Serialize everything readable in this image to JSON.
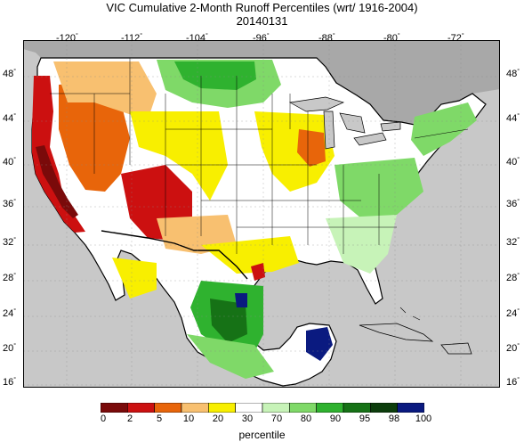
{
  "title": {
    "line1": "VIC Cumulative 2-Month Runoff Percentiles (wrt/ 1916-2004)",
    "line2": "20140131"
  },
  "lon_ticks": [
    "-120",
    "-112",
    "-104",
    "-96",
    "-88",
    "-80",
    "-72"
  ],
  "lat_ticks": [
    "48",
    "44",
    "40",
    "36",
    "32",
    "28",
    "24",
    "20",
    "16"
  ],
  "legend": {
    "title": "percentile",
    "labels": [
      "0",
      "2",
      "5",
      "10",
      "20",
      "30",
      "70",
      "80",
      "90",
      "95",
      "98",
      "100"
    ],
    "colors": [
      "#7a0a0a",
      "#cc1010",
      "#e8650a",
      "#f8c070",
      "#f8ef00",
      "#ffffff",
      "#c7f3b8",
      "#7fd968",
      "#2fb22f",
      "#167216",
      "#0c3d0c",
      "#0a1a80"
    ]
  },
  "colors": {
    "ocean": "#c8c8c8",
    "canada": "#a8a8a8",
    "land_normal": "#ffffff",
    "border": "#000000"
  }
}
